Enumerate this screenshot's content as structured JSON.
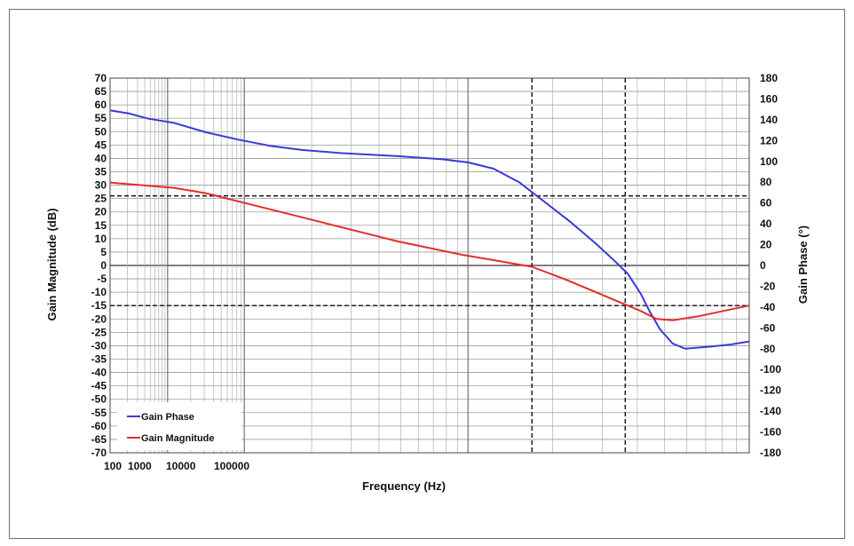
{
  "chart_data": {
    "type": "line",
    "xlabel": "Frequency (Hz)",
    "ylabel_left": "Gain Magnitude (dB)",
    "ylabel_right": "Gain Phase (°)",
    "x_tick_labels": [
      "100",
      "1000",
      "10000",
      "100000"
    ],
    "ylim_left": [
      -70,
      70
    ],
    "ylim_right": [
      -180,
      180
    ],
    "y_ticks_left": [
      70,
      65,
      60,
      55,
      50,
      45,
      40,
      35,
      30,
      25,
      20,
      15,
      10,
      5,
      0,
      -5,
      -10,
      -15,
      -20,
      -25,
      -30,
      -35,
      -40,
      -45,
      -50,
      -55,
      -60,
      -65,
      -70
    ],
    "y_ticks_right": [
      180,
      160,
      140,
      120,
      100,
      80,
      60,
      40,
      20,
      0,
      -20,
      -40,
      -60,
      -80,
      -100,
      -120,
      -140,
      -160,
      -180
    ],
    "grid": true,
    "legend_position": "bottom-left",
    "colors": {
      "phase": "#3a3ad6",
      "magnitude": "#e0302a"
    },
    "reference_lines": {
      "magnitude_dB": [
        26,
        -15
      ],
      "x_fraction": [
        0.66,
        0.806
      ]
    },
    "series": [
      {
        "name": "Gain Phase",
        "axis": "right",
        "x_fraction": [
          0.0,
          0.03,
          0.06,
          0.1,
          0.15,
          0.2,
          0.25,
          0.3,
          0.36,
          0.45,
          0.52,
          0.56,
          0.6,
          0.64,
          0.68,
          0.72,
          0.76,
          0.79,
          0.81,
          0.83,
          0.845,
          0.86,
          0.88,
          0.9,
          0.94,
          0.97,
          1.0
        ],
        "y": [
          149,
          146,
          141,
          137,
          128,
          121,
          115,
          111,
          108,
          105,
          102,
          99,
          93,
          80,
          61,
          42,
          21,
          4,
          -8,
          -27,
          -45,
          -61,
          -75,
          -80,
          -78,
          -76,
          -73
        ]
      },
      {
        "name": "Gain Magnitude",
        "axis": "left",
        "x_fraction": [
          0.0,
          0.05,
          0.1,
          0.15,
          0.2,
          0.25,
          0.3,
          0.35,
          0.4,
          0.45,
          0.5,
          0.55,
          0.6,
          0.66,
          0.71,
          0.76,
          0.79,
          0.81,
          0.83,
          0.855,
          0.88,
          0.92,
          0.96,
          1.0
        ],
        "y": [
          31,
          30,
          29,
          27,
          24,
          21,
          18,
          15,
          12,
          9,
          6.5,
          4,
          2,
          -0.5,
          -5,
          -10,
          -13,
          -15,
          -17,
          -20,
          -20.5,
          -19,
          -17,
          -15
        ]
      }
    ]
  }
}
